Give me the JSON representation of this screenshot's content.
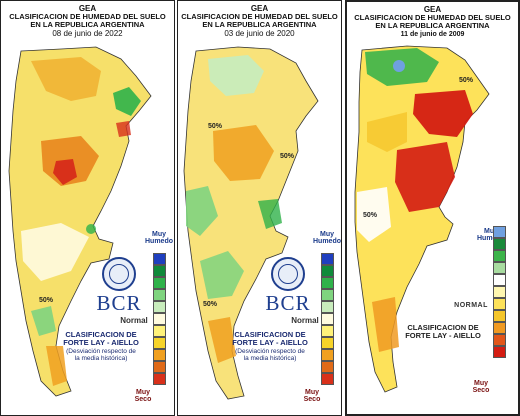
{
  "panels": [
    {
      "header": {
        "org": "GEA",
        "title1": "CLASIFICACION DE HUMEDAD DEL SUELO",
        "title2": "EN LA REPUBLICA ARGENTINA",
        "date": "08 de junio de 2022"
      },
      "legend": {
        "wet": "Muy Humedo",
        "normal": "Normal",
        "dry": "Muy Seco"
      },
      "logo": "BCR",
      "classification": {
        "line1": "CLASIFICACION DE",
        "line2": "FORTE LAY - AIELLO",
        "line3": "(Desviación respecto de",
        "line4": "la media histórica)"
      },
      "contour_labels": [
        "50%"
      ]
    },
    {
      "header": {
        "org": "GEA",
        "title1": "CLASIFICACION DE HUMEDAD DEL SUELO",
        "title2": "EN LA REPUBLICA ARGENTINA",
        "date": "03 de junio de 2020"
      },
      "legend": {
        "wet": "Muy Humedo",
        "normal": "Normal",
        "dry": "Muy Seco"
      },
      "logo": "BCR",
      "classification": {
        "line1": "CLASIFICACION DE",
        "line2": "FORTE LAY - AIELLO",
        "line3": "(Desviación respecto de",
        "line4": "la media histórica)"
      },
      "contour_labels": [
        "50%",
        "50%",
        "50%"
      ]
    },
    {
      "header": {
        "org": "GEA",
        "title1": "CLASIFICACION DE HUMEDAD DEL SUELO",
        "title2": "EN LA REPUBLICA ARGENTINA",
        "date": "11 de junio de 2009"
      },
      "legend": {
        "wet": "Muy Humedo",
        "normal": "NORMAL",
        "dry": "Muy Seco"
      },
      "classification": {
        "line1": "CLASIFICACION DE",
        "line2": "FORTE LAY - AIELLO"
      },
      "contour_labels": [
        "50%",
        "50%"
      ]
    }
  ],
  "legend_colors": [
    "#1f3fbf",
    "#0f8a3a",
    "#2fb24a",
    "#7fd47f",
    "#c8ecbc",
    "#fffbe0",
    "#fff27a",
    "#f7d42a",
    "#f0a020",
    "#e06a18",
    "#d8301a"
  ],
  "legend_colors_2009": [
    "#6fa0e0",
    "#1a8a3a",
    "#3cb44a",
    "#a8dca0",
    "#ffffff",
    "#fff7b0",
    "#fde25a",
    "#f5c62a",
    "#f09a22",
    "#e2561a",
    "#d41c12"
  ]
}
